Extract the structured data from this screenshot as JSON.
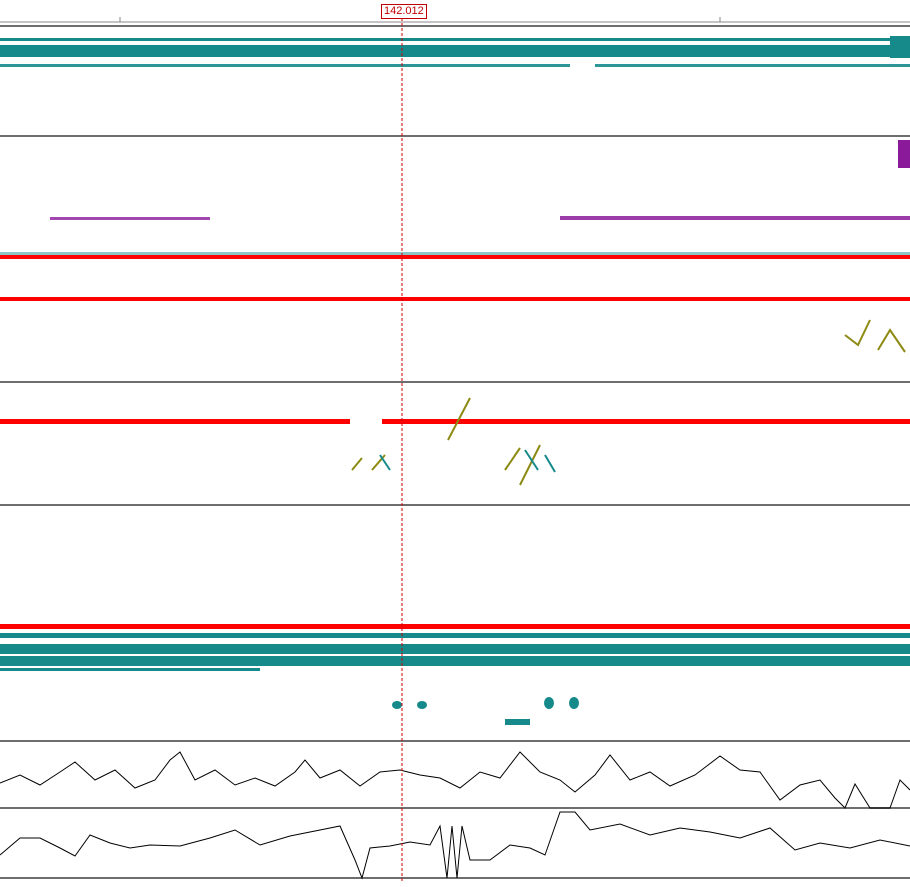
{
  "cursor": {
    "position_label": "142.012"
  },
  "colors": {
    "background": "#ffffff",
    "separator": "#6e6e6e",
    "cursor": "#d00000",
    "alignment_red": "#ff0000",
    "alignment_teal": "#168a8a",
    "alignment_olive": "#8c8a12",
    "alignment_purple": "#8a1a9a",
    "signal_trace": "#000000"
  },
  "tracks": [
    {
      "id": "track-1",
      "kind": "alignment"
    },
    {
      "id": "track-2",
      "kind": "alignment"
    },
    {
      "id": "track-3",
      "kind": "alignment"
    },
    {
      "id": "track-4",
      "kind": "alignment"
    },
    {
      "id": "track-5",
      "kind": "signal"
    },
    {
      "id": "track-6",
      "kind": "signal"
    }
  ]
}
